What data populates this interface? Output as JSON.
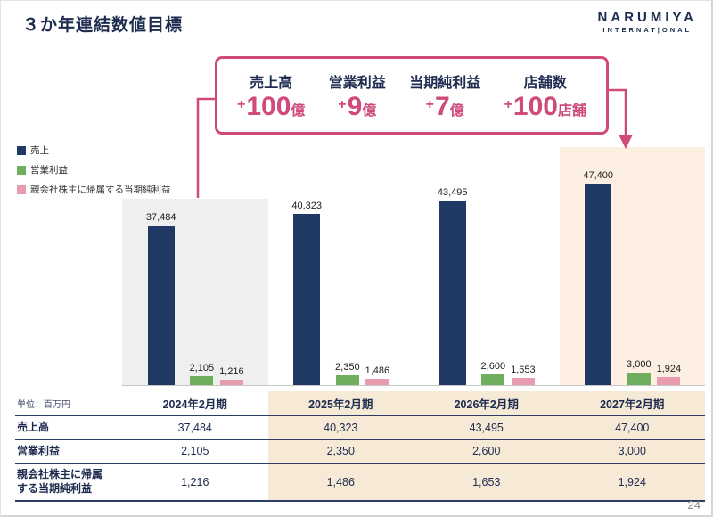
{
  "page": {
    "number": "24"
  },
  "header": {
    "title": "３か年連結数値目標",
    "logo": {
      "line1": "NARUMIYA",
      "line2": "INTERNAT|ONAL"
    }
  },
  "callout": {
    "items": [
      {
        "label": "売上高",
        "value_prefix": "+",
        "value": "100",
        "unit": "億"
      },
      {
        "label": "営業利益",
        "value_prefix": "+",
        "value": "9",
        "unit": "億"
      },
      {
        "label": "当期純利益",
        "value_prefix": "+",
        "value": "7",
        "unit": "億"
      },
      {
        "label": "店舗数",
        "value_prefix": "+",
        "value": "100",
        "unit": "店舗"
      }
    ]
  },
  "legend": {
    "items": [
      {
        "label": "売上",
        "color": "#203864"
      },
      {
        "label": "営業利益",
        "color": "#6fae5c"
      },
      {
        "label": "親会社株主に帰属する当期純利益",
        "color": "#e89cb0"
      }
    ]
  },
  "chart_data": {
    "type": "bar",
    "categories": [
      "2024年2月期",
      "2025年2月期",
      "2026年2月期",
      "2027年2月期"
    ],
    "series": [
      {
        "name": "売上",
        "color": "#203864",
        "values": [
          37484,
          40323,
          43495,
          47400
        ],
        "labels": [
          "37,484",
          "40,323",
          "43,495",
          "47,400"
        ]
      },
      {
        "name": "営業利益",
        "color": "#6fae5c",
        "values": [
          2105,
          2350,
          2600,
          3000
        ],
        "labels": [
          "2,105",
          "2,350",
          "2,600",
          "3,000"
        ]
      },
      {
        "name": "親会社株主に帰属する当期純利益",
        "color": "#e89cb0",
        "values": [
          1216,
          1486,
          1653,
          1924
        ],
        "labels": [
          "1,216",
          "1,486",
          "1,653",
          "1,924"
        ]
      }
    ],
    "ylim": [
      0,
      47400
    ],
    "legend_position": "left",
    "grid": false,
    "highlights": [
      {
        "category": "2024年2月期",
        "color": "#efefef"
      },
      {
        "category": "2027年2月期",
        "color": "#fdf0e2"
      }
    ]
  },
  "table": {
    "unit_label": "単位：百万円",
    "columns": [
      "2024年2月期",
      "2025年2月期",
      "2026年2月期",
      "2027年2月期"
    ],
    "highlight_columns": [
      "2025年2月期",
      "2026年2月期",
      "2027年2月期"
    ],
    "rows": [
      {
        "label": "売上高",
        "values": [
          "37,484",
          "40,323",
          "43,495",
          "47,400"
        ]
      },
      {
        "label": "営業利益",
        "values": [
          "2,105",
          "2,350",
          "2,600",
          "3,000"
        ]
      },
      {
        "label": "親会社株主に帰属\nする当期純利益",
        "values": [
          "1,216",
          "1,486",
          "1,653",
          "1,924"
        ]
      }
    ]
  },
  "colors": {
    "accent_pink": "#cf4b7c",
    "table_highlight": "#f6ead7",
    "text_dark": "#1d2b4f"
  }
}
